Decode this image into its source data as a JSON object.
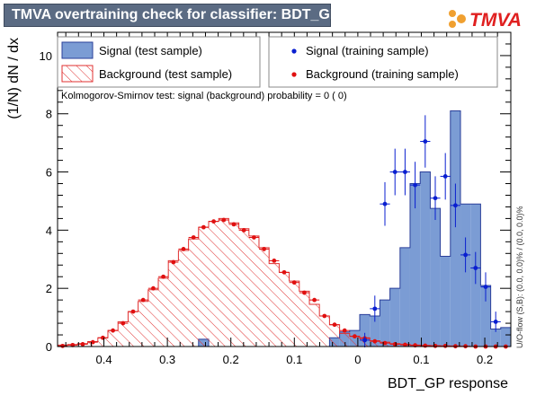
{
  "header": {
    "title": "TMVA overtraining check for classifier: BDT_GP",
    "logo_text": "TMVA"
  },
  "colors": {
    "title_bg": "#5b6b83",
    "signal_fill": "#7b9cd4",
    "signal_edge": "#2a3f9a",
    "background_hatch": "#e03030",
    "signal_points": "#0a1fd0",
    "background_points": "#e01010"
  },
  "legend": {
    "signal_test": "Signal (test sample)",
    "background_test": "Background (test sample)",
    "signal_train": "Signal (training sample)",
    "background_train": "Background (training sample)"
  },
  "ks_text": "Kolmogorov-Smirnov test: signal (background) probability =     0 (    0)",
  "side_text": "U/O-flow (S,B): (0.0, 0.0)% / (0.0, 0.0)%",
  "chart_data": {
    "type": "histogram",
    "xlabel": "BDT_GP response",
    "ylabel": "(1/N) dN / dx",
    "x_reversed": true,
    "xlim": [
      0.473,
      -0.241
    ],
    "ylim": [
      0,
      10.8
    ],
    "x_ticks": [
      0.4,
      0.3,
      0.2,
      0.1,
      0,
      -0.1,
      -0.2
    ],
    "x_tick_labels": [
      "0.4",
      "0.3",
      "0.2",
      "0.1",
      "0",
      "0.1",
      "0.2"
    ],
    "y_ticks": [
      0,
      2,
      4,
      6,
      8,
      10
    ],
    "bin_edges": [
      0.473,
      0.4571,
      0.4413,
      0.4254,
      0.4095,
      0.3937,
      0.3778,
      0.3619,
      0.3461,
      0.3302,
      0.3143,
      0.2985,
      0.2826,
      0.2667,
      0.2509,
      0.235,
      0.2191,
      0.2033,
      0.1874,
      0.1715,
      0.1557,
      0.1398,
      0.1239,
      0.1081,
      0.0922,
      0.0763,
      0.0605,
      0.0446,
      0.0287,
      0.0129,
      -0.003,
      -0.0189,
      -0.0347,
      -0.0506,
      -0.0665,
      -0.0823,
      -0.0982,
      -0.1141,
      -0.1299,
      -0.1458,
      -0.1617,
      -0.1775,
      -0.1934,
      -0.2093,
      -0.2251,
      -0.241
    ],
    "signal_test": [
      0,
      0,
      0,
      0,
      0,
      0,
      0,
      0,
      0,
      0,
      0,
      0,
      0,
      0,
      0.25,
      0,
      0,
      0,
      0,
      0,
      0,
      0,
      0,
      0,
      0,
      0,
      0,
      0.3,
      0.5,
      0.55,
      1.1,
      1.05,
      1.6,
      2.0,
      3.4,
      5.6,
      6.0,
      4.75,
      3.1,
      8.1,
      4.9,
      4.9,
      2.1,
      0.6,
      0.65
    ],
    "background_test": [
      0.05,
      0.07,
      0.1,
      0.17,
      0.3,
      0.55,
      0.85,
      1.2,
      1.55,
      1.95,
      2.35,
      2.95,
      3.3,
      3.7,
      4.1,
      4.3,
      4.4,
      4.25,
      4.05,
      3.8,
      3.4,
      2.85,
      2.55,
      2.25,
      1.9,
      1.45,
      1.05,
      0.75,
      0.45,
      0.35,
      0.3,
      0.2,
      0.15,
      0.1,
      0.08,
      0.05,
      0.04,
      0.03,
      0.02,
      0.02,
      0,
      0,
      0,
      0,
      0
    ],
    "signal_train": [
      null,
      null,
      null,
      null,
      null,
      null,
      null,
      null,
      null,
      null,
      null,
      null,
      null,
      null,
      null,
      null,
      null,
      null,
      null,
      null,
      null,
      null,
      null,
      null,
      null,
      null,
      null,
      null,
      null,
      null,
      0.22,
      1.3,
      4.9,
      6.0,
      6.0,
      5.55,
      7.05,
      5.1,
      5.85,
      4.85,
      3.15,
      2.7,
      2.05,
      0.85,
      null
    ],
    "signal_train_err": [
      null,
      null,
      null,
      null,
      null,
      null,
      null,
      null,
      null,
      null,
      null,
      null,
      null,
      null,
      null,
      null,
      null,
      null,
      null,
      null,
      null,
      null,
      null,
      null,
      null,
      null,
      null,
      null,
      null,
      null,
      0.25,
      0.45,
      0.75,
      0.8,
      0.8,
      0.8,
      0.9,
      0.75,
      0.8,
      0.75,
      0.6,
      0.55,
      0.5,
      0.35,
      null
    ],
    "background_train": [
      0.02,
      0.05,
      0.08,
      0.15,
      0.3,
      0.55,
      0.8,
      1.2,
      1.6,
      2.0,
      2.4,
      2.9,
      3.35,
      3.75,
      4.1,
      4.3,
      4.35,
      4.2,
      4.0,
      3.75,
      3.35,
      2.95,
      2.55,
      2.2,
      1.85,
      1.6,
      1.05,
      0.75,
      0.55,
      0.35,
      0.28,
      0.18,
      0.12,
      0.08,
      0.06,
      0.04,
      0.03,
      0.02,
      0.02,
      0.01,
      0.01,
      0.0,
      0.0,
      0.0,
      0.0
    ]
  }
}
